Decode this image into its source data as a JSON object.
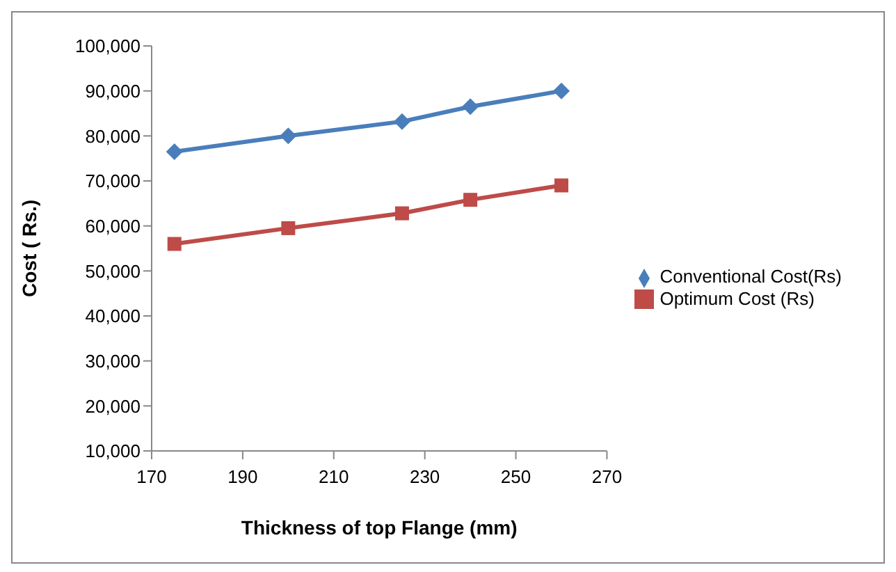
{
  "chart_data": {
    "type": "line",
    "xlabel": "Thickness of top Flange (mm)",
    "ylabel": "Cost ( Rs.)",
    "x": [
      175,
      200,
      225,
      240,
      260
    ],
    "series": [
      {
        "name": "Conventional Cost(Rs)",
        "color": "#4a7ebb",
        "marker": "diamond",
        "values": [
          76500,
          80000,
          83200,
          86500,
          90000
        ]
      },
      {
        "name": "Optimum Cost (Rs)",
        "color": "#be4b48",
        "marker": "square",
        "values": [
          56000,
          59500,
          62800,
          65800,
          69000
        ]
      }
    ],
    "xlim": [
      170,
      270
    ],
    "xticks": [
      170,
      190,
      210,
      230,
      250,
      270
    ],
    "ylim": [
      10000,
      100000
    ],
    "yticks": [
      {
        "value": 10000,
        "label": "10,000"
      },
      {
        "value": 20000,
        "label": "20,000"
      },
      {
        "value": 30000,
        "label": "30,000"
      },
      {
        "value": 40000,
        "label": "40,000"
      },
      {
        "value": 50000,
        "label": "50,000"
      },
      {
        "value": 60000,
        "label": "60,000"
      },
      {
        "value": 70000,
        "label": "70,000"
      },
      {
        "value": 80000,
        "label": "80,000"
      },
      {
        "value": 90000,
        "label": "90,000"
      },
      {
        "value": 100000,
        "label": "100,000"
      }
    ],
    "legend": "right",
    "grid": false
  }
}
